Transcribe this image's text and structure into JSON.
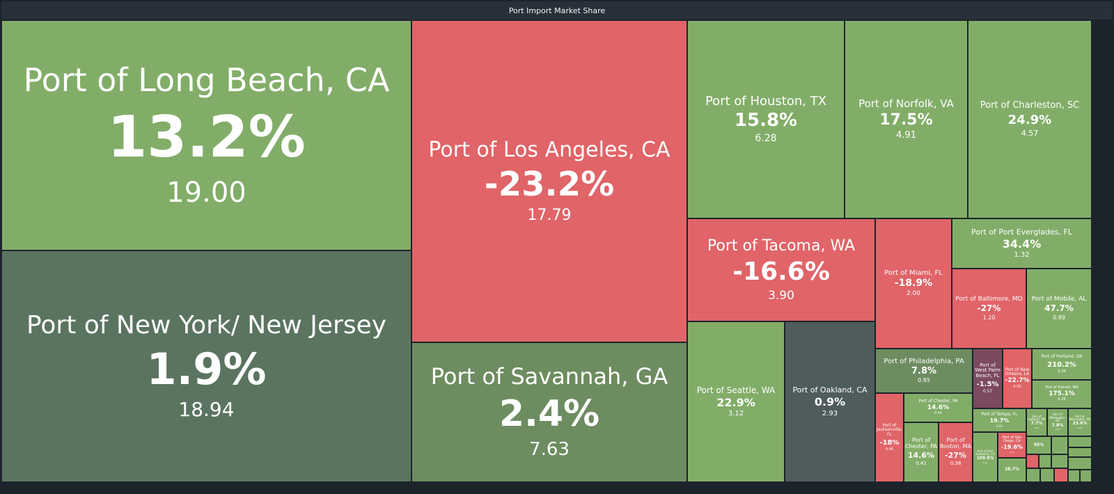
{
  "window": {
    "title": "Port Import Market Share"
  },
  "colors": {
    "positive": "#82ad68",
    "negative": "#e06468",
    "neutral_dark": "#5b7460",
    "neutral_mid": "#6d8c60",
    "slate": "#4e5c5b",
    "mauve": "#7b4a5e",
    "background": "#1c232b",
    "title_bar": "#283039"
  },
  "chart_data": {
    "type": "treemap",
    "title": "Port Import Market Share",
    "size_metric": "share",
    "color_metric": "change_pct",
    "items": [
      {
        "label": "Port of Long Beach, CA",
        "change": "13.2%",
        "value": "19.00",
        "share": 19.0,
        "change_pct": 13.2,
        "color": "#82ad68"
      },
      {
        "label": "Port of New York/ New Jersey",
        "change": "1.9%",
        "value": "18.94",
        "share": 18.94,
        "change_pct": 1.9,
        "color": "#5b7460"
      },
      {
        "label": "Port of Los Angeles, CA",
        "change": "-23.2%",
        "value": "17.79",
        "share": 17.79,
        "change_pct": -23.2,
        "color": "#e06468"
      },
      {
        "label": "Port of Savannah, GA",
        "change": "2.4%",
        "value": "7.63",
        "share": 7.63,
        "change_pct": 2.4,
        "color": "#6d8c60"
      },
      {
        "label": "Port of Houston, TX",
        "change": "15.8%",
        "value": "6.28",
        "share": 6.28,
        "change_pct": 15.8,
        "color": "#82ad68"
      },
      {
        "label": "Port of Norfolk, VA",
        "change": "17.5%",
        "value": "4.91",
        "share": 4.91,
        "change_pct": 17.5,
        "color": "#82ad68"
      },
      {
        "label": "Port of Charleston, SC",
        "change": "24.9%",
        "value": "4.57",
        "share": 4.57,
        "change_pct": 24.9,
        "color": "#82ad68"
      },
      {
        "label": "Port of Tacoma, WA",
        "change": "-16.6%",
        "value": "3.90",
        "share": 3.9,
        "change_pct": -16.6,
        "color": "#e06468"
      },
      {
        "label": "Port of Seattle, WA",
        "change": "22.9%",
        "value": "3.12",
        "share": 3.12,
        "change_pct": 22.9,
        "color": "#82ad68"
      },
      {
        "label": "Port of Oakland, CA",
        "change": "0.9%",
        "value": "2.93",
        "share": 2.93,
        "change_pct": 0.9,
        "color": "#4e5c5b"
      },
      {
        "label": "Port of Miami, FL",
        "change": "-18.9%",
        "value": "2.00",
        "share": 2.0,
        "change_pct": -18.9,
        "color": "#e06468"
      },
      {
        "label": "Port of Port Everglades, FL",
        "change": "34.4%",
        "value": "1.32",
        "share": 1.32,
        "change_pct": 34.4,
        "color": "#82ad68"
      },
      {
        "label": "Port of Baltimore, MD",
        "change": "-27%",
        "value": "1.20",
        "share": 1.2,
        "change_pct": -27,
        "color": "#e06468"
      },
      {
        "label": "Port of Mobile, AL",
        "change": "47.7%",
        "value": "0.89",
        "share": 0.89,
        "change_pct": 47.7,
        "color": "#82ad68"
      },
      {
        "label": "Port of Philadelphia, PA",
        "change": "7.8%",
        "value": "0.85",
        "share": 0.85,
        "change_pct": 7.8,
        "color": "#6d8c60"
      },
      {
        "label": "Port of West Palm Beach, FL",
        "change": "-1.5%",
        "value": "0.57",
        "share": 0.57,
        "change_pct": -1.5,
        "color": "#7b4a5e"
      },
      {
        "label": "Port of New Orleans, LA",
        "change": "-22.7%",
        "value": "0.55",
        "share": 0.55,
        "change_pct": -22.7,
        "color": "#e06468"
      },
      {
        "label": "Port of Portland, OR",
        "change": "210.2%",
        "value": "0.34",
        "share": 0.34,
        "change_pct": 210.2,
        "color": "#82ad68"
      },
      {
        "label": "Port of Everett, WA",
        "change": "175.1%",
        "value": "0.28",
        "share": 0.28,
        "change_pct": 175.1,
        "color": "#82ad68"
      },
      {
        "label": "Port of Jacksonville, FL",
        "change": "-18%",
        "value": "0.40",
        "share": 0.4,
        "change_pct": -18,
        "color": "#e06468"
      },
      {
        "label": "Port of Chester, PA",
        "change": "14.6%",
        "value": "0.41",
        "share": 0.41,
        "change_pct": 14.6,
        "color": "#82ad68"
      },
      {
        "label": "Port of Chester, PA",
        "change": "14.6%",
        "value": "0.41",
        "share": 0.41,
        "change_pct": 14.6,
        "color": "#82ad68"
      },
      {
        "label": "Port of Boston, MA",
        "change": "-27%",
        "value": "0.38",
        "share": 0.38,
        "change_pct": -27,
        "color": "#e06468"
      },
      {
        "label": "Port of Tampa, FL",
        "change": "19.7%",
        "value": "0.22",
        "share": 0.22,
        "change_pct": 19.7,
        "color": "#82ad68"
      },
      {
        "label": "Port of Port Hueneme, CA",
        "change": "109.5%",
        "value": "0.21",
        "share": 0.21,
        "change_pct": 109.5,
        "color": "#82ad68"
      },
      {
        "label": "Port of San Diego, CA",
        "change": "-19.6%",
        "value": "0.17",
        "share": 0.17,
        "change_pct": -19.6,
        "color": "#e06468"
      },
      {
        "label": "Port of Gulfport, MS",
        "change": "7.7%",
        "value": "0.12",
        "share": 0.12,
        "change_pct": 7.7,
        "color": "#82ad68"
      },
      {
        "label": "Port of Wilmington, DE",
        "change": "7.8%",
        "value": "0.11",
        "share": 0.11,
        "change_pct": 7.8,
        "color": "#82ad68"
      },
      {
        "label": "Port of Wilmington, NC",
        "change": "23.8%",
        "value": "0.11",
        "share": 0.11,
        "change_pct": 23.8,
        "color": "#82ad68"
      },
      {
        "label": "",
        "change": "95%",
        "value": "",
        "share": 0.09,
        "change_pct": 95,
        "color": "#82ad68"
      },
      {
        "label": "",
        "change": "28.7%",
        "value": "",
        "share": 0.09,
        "change_pct": 28.7,
        "color": "#82ad68"
      },
      {
        "label": "",
        "change": "",
        "value": "",
        "share": 0.06,
        "change_pct": 10,
        "color": "#82ad68"
      },
      {
        "label": "",
        "change": "",
        "value": "",
        "share": 0.05,
        "change_pct": 10,
        "color": "#82ad68"
      },
      {
        "label": "",
        "change": "",
        "value": "",
        "share": 0.05,
        "change_pct": 10,
        "color": "#82ad68"
      },
      {
        "label": "",
        "change": "",
        "value": "",
        "share": 0.05,
        "change_pct": -10,
        "color": "#e06468"
      },
      {
        "label": "",
        "change": "",
        "value": "",
        "share": 0.04,
        "change_pct": 10,
        "color": "#82ad68"
      },
      {
        "label": "",
        "change": "",
        "value": "",
        "share": 0.04,
        "change_pct": 10,
        "color": "#82ad68"
      },
      {
        "label": "",
        "change": "",
        "value": "",
        "share": 0.04,
        "change_pct": 10,
        "color": "#82ad68"
      },
      {
        "label": "",
        "change": "",
        "value": "",
        "share": 0.03,
        "change_pct": 10,
        "color": "#82ad68"
      },
      {
        "label": "",
        "change": "",
        "value": "",
        "share": 0.03,
        "change_pct": 10,
        "color": "#82ad68"
      },
      {
        "label": "",
        "change": "",
        "value": "",
        "share": 0.03,
        "change_pct": -10,
        "color": "#e06468"
      },
      {
        "label": "",
        "change": "",
        "value": "",
        "share": 0.03,
        "change_pct": 10,
        "color": "#82ad68"
      },
      {
        "label": "",
        "change": "",
        "value": "",
        "share": 0.02,
        "change_pct": 10,
        "color": "#82ad68"
      },
      {
        "label": "",
        "change": "",
        "value": "",
        "share": 0.02,
        "change_pct": 10,
        "color": "#82ad68"
      }
    ]
  }
}
